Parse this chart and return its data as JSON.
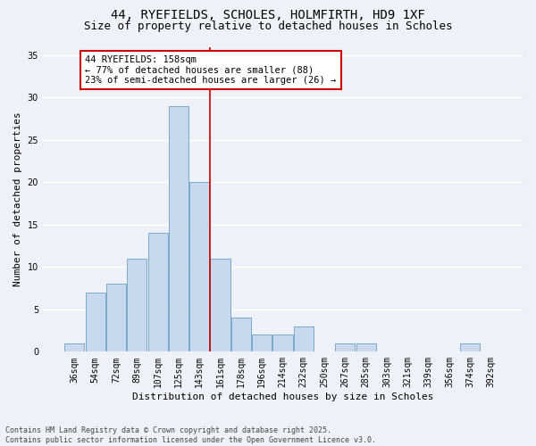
{
  "title_line1": "44, RYEFIELDS, SCHOLES, HOLMFIRTH, HD9 1XF",
  "title_line2": "Size of property relative to detached houses in Scholes",
  "xlabel": "Distribution of detached houses by size in Scholes",
  "ylabel": "Number of detached properties",
  "bar_color": "#c9d9ed",
  "bar_edge_color": "#7aaac8",
  "background_color": "#eef2f8",
  "grid_color": "#ffffff",
  "categories": [
    "36sqm",
    "54sqm",
    "72sqm",
    "89sqm",
    "107sqm",
    "125sqm",
    "143sqm",
    "161sqm",
    "178sqm",
    "196sqm",
    "214sqm",
    "232sqm",
    "250sqm",
    "267sqm",
    "285sqm",
    "303sqm",
    "321sqm",
    "339sqm",
    "356sqm",
    "374sqm",
    "392sqm"
  ],
  "values": [
    1,
    7,
    8,
    11,
    14,
    29,
    20,
    11,
    4,
    2,
    2,
    3,
    0,
    1,
    1,
    0,
    0,
    0,
    0,
    1,
    0
  ],
  "ylim": [
    0,
    36
  ],
  "yticks": [
    0,
    5,
    10,
    15,
    20,
    25,
    30,
    35
  ],
  "property_line_x": 6.5,
  "annotation_text": "44 RYEFIELDS: 158sqm\n← 77% of detached houses are smaller (88)\n23% of semi-detached houses are larger (26) →",
  "annotation_box_color": "#ffffff",
  "annotation_box_edge_color": "#cc0000",
  "line_color": "#cc0000",
  "footnote": "Contains HM Land Registry data © Crown copyright and database right 2025.\nContains public sector information licensed under the Open Government Licence v3.0.",
  "title_fontsize": 10,
  "subtitle_fontsize": 9,
  "axis_label_fontsize": 8,
  "tick_fontsize": 7,
  "annotation_fontsize": 7.5,
  "footnote_fontsize": 6
}
